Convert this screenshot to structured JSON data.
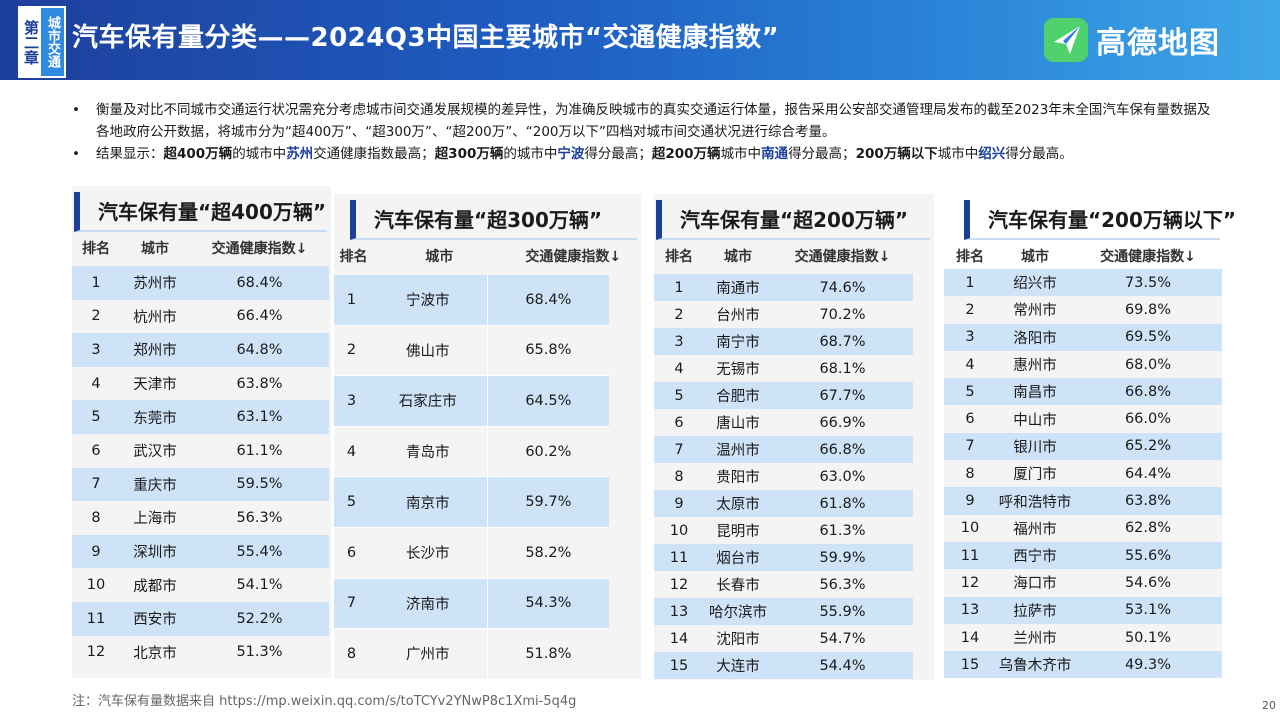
{
  "header": {
    "chapter_number": "第二章",
    "chapter_name": "城市交通",
    "title": "汽车保有量分类——2024Q3中国主要城市“交通健康指数”",
    "logo_text": "高德地图"
  },
  "bullets": [
    {
      "marker": "•",
      "segments": [
        {
          "text": "衡量及对比不同城市交通运行状况需充分考虑城市间交通发展规模的差异性，为准确反映城市的真实交通运行体量，报告采用公安部交通管理局发布的截至2023年末全国汽车保有量数据及各地政府公开数据，将城市分为“超400万”、“超300万”、“超200万”、“200万以下”四档对城市间交通状况进行综合考量。",
          "style": "normal"
        }
      ]
    },
    {
      "marker": "•",
      "segments": [
        {
          "text": "结果显示：",
          "style": "normal"
        },
        {
          "text": "超400万辆",
          "style": "bold"
        },
        {
          "text": "的城市中",
          "style": "normal"
        },
        {
          "text": "苏州",
          "style": "city"
        },
        {
          "text": "交通健康指数最高；",
          "style": "normal"
        },
        {
          "text": "超300万辆",
          "style": "bold"
        },
        {
          "text": "的城市中",
          "style": "normal"
        },
        {
          "text": "宁波",
          "style": "city"
        },
        {
          "text": "得分最高；",
          "style": "normal"
        },
        {
          "text": "超200万辆",
          "style": "bold"
        },
        {
          "text": "城市中",
          "style": "normal"
        },
        {
          "text": "南通",
          "style": "city"
        },
        {
          "text": "得分最高；",
          "style": "normal"
        },
        {
          "text": "200万辆以下",
          "style": "bold"
        },
        {
          "text": "城市中",
          "style": "normal"
        },
        {
          "text": "绍兴",
          "style": "city"
        },
        {
          "text": "得分最高。",
          "style": "normal"
        }
      ]
    }
  ],
  "columns": {
    "rank": "排名",
    "city": "城市",
    "score": "交通健康指数↓"
  },
  "tables": [
    {
      "title": "汽车保有量“超400万辆”",
      "rows": [
        {
          "rank": "1",
          "city": "苏州市",
          "score": "68.4%"
        },
        {
          "rank": "2",
          "city": "杭州市",
          "score": "66.4%"
        },
        {
          "rank": "3",
          "city": "郑州市",
          "score": "64.8%"
        },
        {
          "rank": "4",
          "city": "天津市",
          "score": "63.8%"
        },
        {
          "rank": "5",
          "city": "东莞市",
          "score": "63.1%"
        },
        {
          "rank": "6",
          "city": "武汉市",
          "score": "61.1%"
        },
        {
          "rank": "7",
          "city": "重庆市",
          "score": "59.5%"
        },
        {
          "rank": "8",
          "city": "上海市",
          "score": "56.3%"
        },
        {
          "rank": "9",
          "city": "深圳市",
          "score": "55.4%"
        },
        {
          "rank": "10",
          "city": "成都市",
          "score": "54.1%"
        },
        {
          "rank": "11",
          "city": "西安市",
          "score": "52.2%"
        },
        {
          "rank": "12",
          "city": "北京市",
          "score": "51.3%"
        }
      ]
    },
    {
      "title": "汽车保有量“超300万辆”",
      "rows": [
        {
          "rank": "1",
          "city": "宁波市",
          "score": "68.4%"
        },
        {
          "rank": "2",
          "city": "佛山市",
          "score": "65.8%"
        },
        {
          "rank": "3",
          "city": "石家庄市",
          "score": "64.5%"
        },
        {
          "rank": "4",
          "city": "青岛市",
          "score": "60.2%"
        },
        {
          "rank": "5",
          "city": "南京市",
          "score": "59.7%"
        },
        {
          "rank": "6",
          "city": "长沙市",
          "score": "58.2%"
        },
        {
          "rank": "7",
          "city": "济南市",
          "score": "54.3%"
        },
        {
          "rank": "8",
          "city": "广州市",
          "score": "51.8%"
        }
      ]
    },
    {
      "title": "汽车保有量“超200万辆”",
      "rows": [
        {
          "rank": "1",
          "city": "南通市",
          "score": "74.6%"
        },
        {
          "rank": "2",
          "city": "台州市",
          "score": "70.2%"
        },
        {
          "rank": "3",
          "city": "南宁市",
          "score": "68.7%"
        },
        {
          "rank": "4",
          "city": "无锡市",
          "score": "68.1%"
        },
        {
          "rank": "5",
          "city": "合肥市",
          "score": "67.7%"
        },
        {
          "rank": "6",
          "city": "唐山市",
          "score": "66.9%"
        },
        {
          "rank": "7",
          "city": "温州市",
          "score": "66.8%"
        },
        {
          "rank": "8",
          "city": "贵阳市",
          "score": "63.0%"
        },
        {
          "rank": "9",
          "city": "太原市",
          "score": "61.8%"
        },
        {
          "rank": "10",
          "city": "昆明市",
          "score": "61.3%"
        },
        {
          "rank": "11",
          "city": "烟台市",
          "score": "59.9%"
        },
        {
          "rank": "12",
          "city": "长春市",
          "score": "56.3%"
        },
        {
          "rank": "13",
          "city": "哈尔滨市",
          "score": "55.9%"
        },
        {
          "rank": "14",
          "city": "沈阳市",
          "score": "54.7%"
        },
        {
          "rank": "15",
          "city": "大连市",
          "score": "54.4%"
        }
      ]
    },
    {
      "title": "汽车保有量“200万辆以下”",
      "rows": [
        {
          "rank": "1",
          "city": "绍兴市",
          "score": "73.5%"
        },
        {
          "rank": "2",
          "city": "常州市",
          "score": "69.8%"
        },
        {
          "rank": "3",
          "city": "洛阳市",
          "score": "69.5%"
        },
        {
          "rank": "4",
          "city": "惠州市",
          "score": "68.0%"
        },
        {
          "rank": "5",
          "city": "南昌市",
          "score": "66.8%"
        },
        {
          "rank": "6",
          "city": "中山市",
          "score": "66.0%"
        },
        {
          "rank": "7",
          "city": "银川市",
          "score": "65.2%"
        },
        {
          "rank": "8",
          "city": "厦门市",
          "score": "64.4%"
        },
        {
          "rank": "9",
          "city": "呼和浩特市",
          "score": "63.8%"
        },
        {
          "rank": "10",
          "city": "福州市",
          "score": "62.8%"
        },
        {
          "rank": "11",
          "city": "西宁市",
          "score": "55.6%"
        },
        {
          "rank": "12",
          "city": "海口市",
          "score": "54.6%"
        },
        {
          "rank": "13",
          "city": "拉萨市",
          "score": "53.1%"
        },
        {
          "rank": "14",
          "city": "兰州市",
          "score": "50.1%"
        },
        {
          "rank": "15",
          "city": "乌鲁木齐市",
          "score": "49.3%"
        }
      ]
    }
  ],
  "footnote": "注：汽车保有量数据来自 https://mp.weixin.qq.com/s/toTCYv2YNwP8c1Xmi-5q4g",
  "page_number": "20",
  "colors": {
    "brand": "#1d3f9c",
    "row_highlight": "#cfe3f8",
    "panel_bg": "#f4f4f4"
  }
}
